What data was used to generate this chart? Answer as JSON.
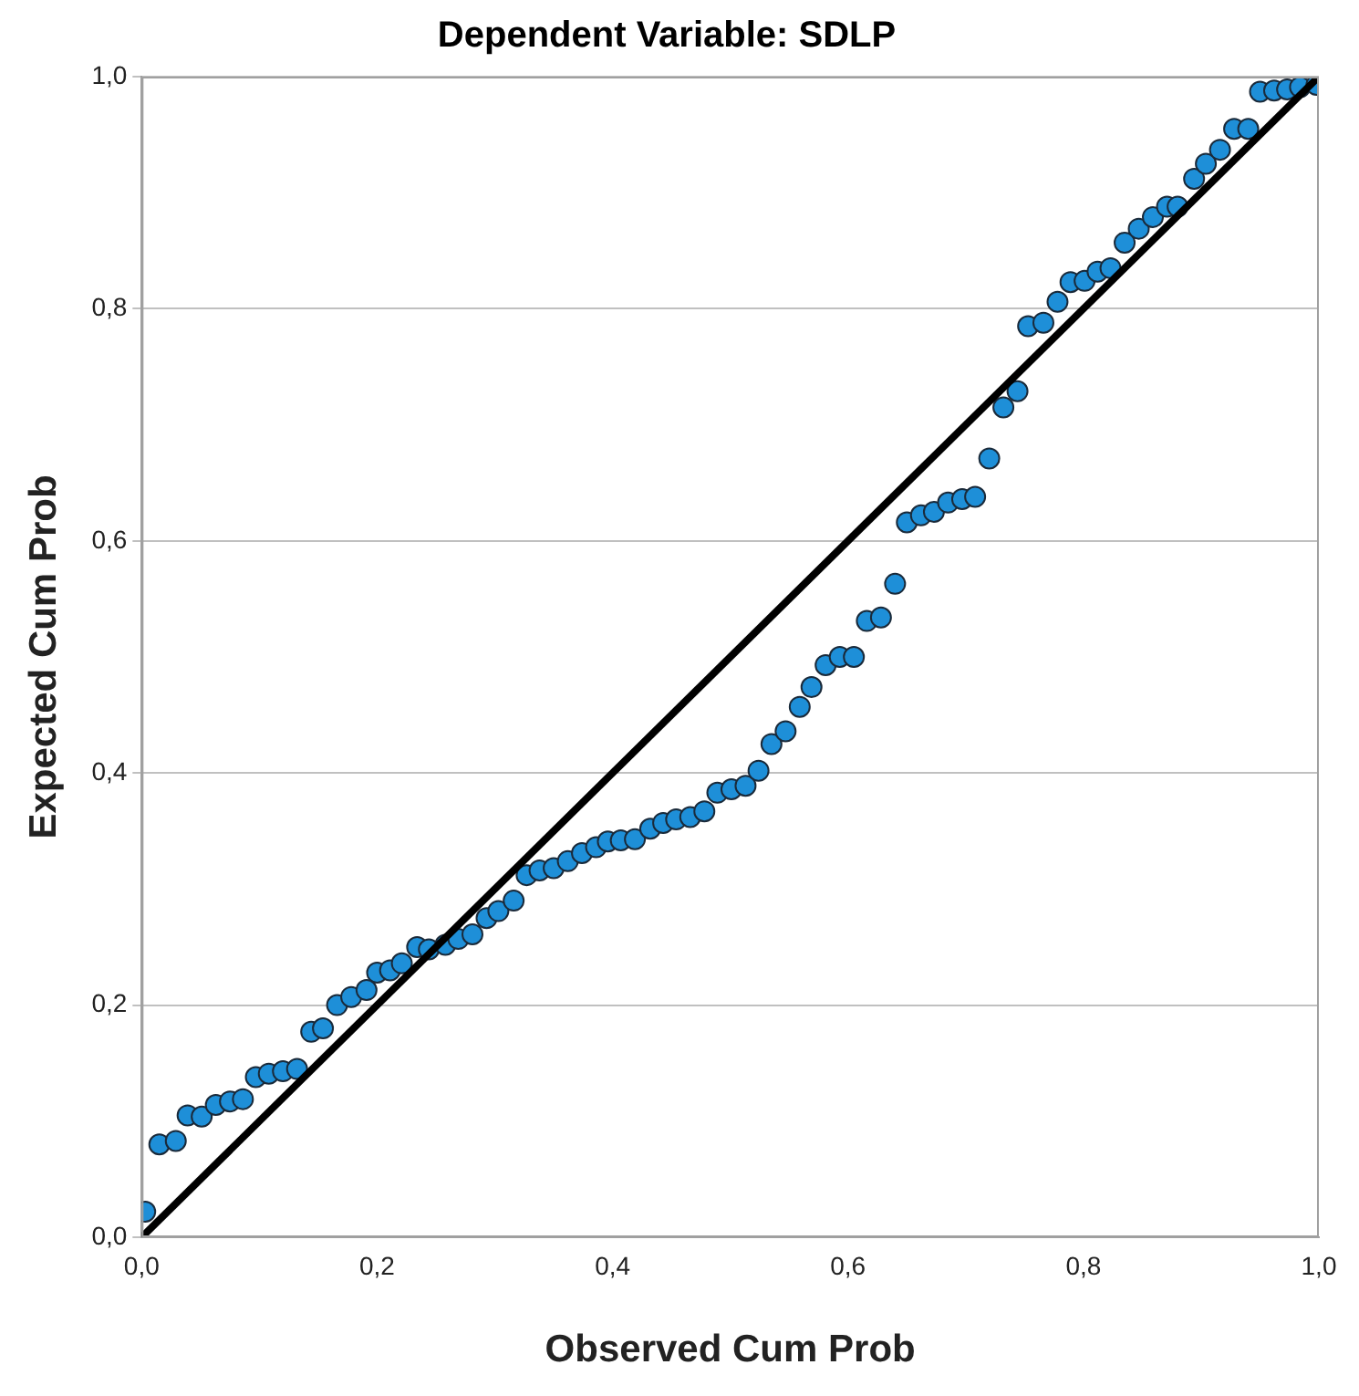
{
  "chart_data": {
    "type": "scatter",
    "title": "Dependent Variable: SDLP",
    "xlabel": "Observed Cum Prob",
    "ylabel": "Expected Cum Prob",
    "xlim": [
      0,
      1
    ],
    "ylim": [
      0,
      1
    ],
    "xticks": [
      {
        "value": 0,
        "label": "0,0"
      },
      {
        "value": 0.2,
        "label": "0,2"
      },
      {
        "value": 0.4,
        "label": "0,4"
      },
      {
        "value": 0.6,
        "label": "0,6"
      },
      {
        "value": 0.8,
        "label": "0,8"
      },
      {
        "value": 1,
        "label": "1,0"
      }
    ],
    "yticks": [
      {
        "value": 0,
        "label": "0,0"
      },
      {
        "value": 0.2,
        "label": "0,2"
      },
      {
        "value": 0.4,
        "label": "0,4"
      },
      {
        "value": 0.6,
        "label": "0,6"
      },
      {
        "value": 0.8,
        "label": "0,8"
      },
      {
        "value": 1,
        "label": "1,0"
      }
    ],
    "grid": "y",
    "legend": false,
    "series": [
      {
        "marker": "circle",
        "color": "#1e8fd8",
        "x": [
          0.003,
          0.015,
          0.029,
          0.039,
          0.051,
          0.063,
          0.075,
          0.086,
          0.097,
          0.108,
          0.12,
          0.132,
          0.144,
          0.154,
          0.166,
          0.178,
          0.191,
          0.2,
          0.211,
          0.221,
          0.234,
          0.244,
          0.258,
          0.269,
          0.281,
          0.293,
          0.303,
          0.316,
          0.327,
          0.338,
          0.35,
          0.362,
          0.374,
          0.386,
          0.396,
          0.407,
          0.419,
          0.432,
          0.443,
          0.454,
          0.466,
          0.478,
          0.489,
          0.501,
          0.513,
          0.524,
          0.535,
          0.547,
          0.559,
          0.569,
          0.581,
          0.593,
          0.605,
          0.616,
          0.628,
          0.64,
          0.65,
          0.662,
          0.673,
          0.685,
          0.697,
          0.708,
          0.72,
          0.732,
          0.744,
          0.753,
          0.766,
          0.778,
          0.789,
          0.801,
          0.812,
          0.823,
          0.835,
          0.847,
          0.859,
          0.871,
          0.88,
          0.894,
          0.904,
          0.916,
          0.928,
          0.94,
          0.95,
          0.962,
          0.973,
          0.984,
          0.998
        ],
        "values": [
          0.022,
          0.08,
          0.083,
          0.105,
          0.104,
          0.114,
          0.117,
          0.119,
          0.138,
          0.141,
          0.143,
          0.145,
          0.177,
          0.18,
          0.2,
          0.207,
          0.213,
          0.228,
          0.23,
          0.236,
          0.25,
          0.248,
          0.252,
          0.257,
          0.261,
          0.275,
          0.281,
          0.29,
          0.312,
          0.316,
          0.318,
          0.324,
          0.331,
          0.336,
          0.341,
          0.342,
          0.343,
          0.352,
          0.357,
          0.36,
          0.362,
          0.367,
          0.383,
          0.386,
          0.389,
          0.402,
          0.425,
          0.436,
          0.457,
          0.474,
          0.493,
          0.5,
          0.5,
          0.531,
          0.534,
          0.563,
          0.616,
          0.622,
          0.625,
          0.633,
          0.636,
          0.638,
          0.671,
          0.715,
          0.729,
          0.785,
          0.788,
          0.806,
          0.823,
          0.824,
          0.832,
          0.835,
          0.857,
          0.869,
          0.879,
          0.888,
          0.888,
          0.912,
          0.925,
          0.937,
          0.955,
          0.955,
          0.987,
          0.988,
          0.989,
          0.991,
          0.993
        ]
      },
      {
        "type": "line",
        "marker": "none",
        "color": "#000000",
        "x": [
          0,
          1
        ],
        "values": [
          0,
          1
        ]
      }
    ]
  }
}
